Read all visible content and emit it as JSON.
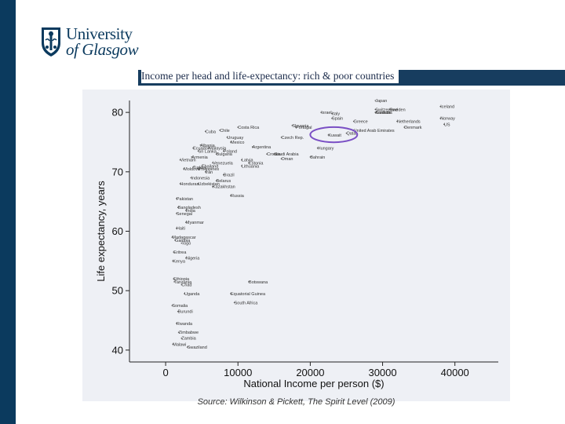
{
  "logo": {
    "line1": "University",
    "line2": "of Glasgow"
  },
  "slide": {
    "title": "Income per head and life-expectancy: rich & poor countries",
    "source": "Source: Wilkinson & Pickett, The Spirit Level (2009)"
  },
  "colors": {
    "brand": "#0b3a5e",
    "title_bar": "#173d5f",
    "chart_background": "#eef0f5",
    "highlight": "#7a4fc4"
  },
  "chart_data": {
    "type": "scatter",
    "title": "",
    "xlabel": "National Income per person ($)",
    "ylabel": "Life expectancy, years",
    "xlim": [
      -5000,
      46000
    ],
    "ylim": [
      38,
      82
    ],
    "xticks": [
      0,
      10000,
      20000,
      30000,
      40000
    ],
    "yticks": [
      40,
      50,
      60,
      70,
      80
    ],
    "xtick_labels": [
      "0",
      "10000",
      "20000",
      "30000",
      "40000"
    ],
    "ytick_labels": [
      "40",
      "50",
      "60",
      "70",
      "80"
    ],
    "grid": false,
    "series": [
      {
        "name": "Countries",
        "points": [
          {
            "x": 29000,
            "y": 82.0,
            "label": "Japan"
          },
          {
            "x": 38000,
            "y": 81.0,
            "label": "Iceland"
          },
          {
            "x": 31000,
            "y": 80.5,
            "label": "Sweden"
          },
          {
            "x": 29000,
            "y": 80.5,
            "label": "Switzerland"
          },
          {
            "x": 29000,
            "y": 80.0,
            "label": "Canada"
          },
          {
            "x": 29000,
            "y": 80.0,
            "label": "Australia"
          },
          {
            "x": 21500,
            "y": 80.0,
            "label": "Israel"
          },
          {
            "x": 23000,
            "y": 79.8,
            "label": "Italy"
          },
          {
            "x": 38000,
            "y": 79.0,
            "label": "Norway"
          },
          {
            "x": 32000,
            "y": 78.5,
            "label": "Netherlands"
          },
          {
            "x": 38500,
            "y": 78.0,
            "label": "US"
          },
          {
            "x": 33000,
            "y": 77.5,
            "label": "Denmark"
          },
          {
            "x": 26000,
            "y": 78.5,
            "label": "Greece"
          },
          {
            "x": 18000,
            "y": 77.5,
            "label": "Portugal"
          },
          {
            "x": 17500,
            "y": 77.8,
            "label": "Slovenia"
          },
          {
            "x": 16000,
            "y": 75.8,
            "label": "Czech Rep."
          },
          {
            "x": 10000,
            "y": 77.5,
            "label": "Costa Rica"
          },
          {
            "x": 7500,
            "y": 77.0,
            "label": "Chile"
          },
          {
            "x": 5500,
            "y": 76.8,
            "label": "Cuba"
          },
          {
            "x": 8500,
            "y": 75.8,
            "label": "Uruguay"
          },
          {
            "x": 9000,
            "y": 75.0,
            "label": "Mexico"
          },
          {
            "x": 12000,
            "y": 74.2,
            "label": "Argentina"
          },
          {
            "x": 4800,
            "y": 74.5,
            "label": "Albania"
          },
          {
            "x": 8000,
            "y": 73.5,
            "label": "Poland"
          },
          {
            "x": 6000,
            "y": 74.0,
            "label": "Malaysia"
          },
          {
            "x": 14000,
            "y": 73.0,
            "label": "Croatia"
          },
          {
            "x": 3800,
            "y": 74.0,
            "label": "Ecuador"
          },
          {
            "x": 4500,
            "y": 73.5,
            "label": "Sri Lanka"
          },
          {
            "x": 7000,
            "y": 73.0,
            "label": "Bulgaria"
          },
          {
            "x": 3600,
            "y": 72.5,
            "label": "Armenia"
          },
          {
            "x": 6500,
            "y": 71.5,
            "label": "Venezuela"
          },
          {
            "x": 5000,
            "y": 71.0,
            "label": "Thailand"
          },
          {
            "x": 2000,
            "y": 72.0,
            "label": "Vietnam"
          },
          {
            "x": 10500,
            "y": 72.0,
            "label": "Latvia"
          },
          {
            "x": 11500,
            "y": 71.5,
            "label": "Estonia"
          },
          {
            "x": 10500,
            "y": 71.0,
            "label": "Lithuania"
          },
          {
            "x": 2500,
            "y": 70.5,
            "label": "Moldova"
          },
          {
            "x": 4500,
            "y": 70.5,
            "label": "Philippines"
          },
          {
            "x": 3800,
            "y": 70.8,
            "label": "Turkey"
          },
          {
            "x": 5500,
            "y": 70.0,
            "label": "Iran"
          },
          {
            "x": 3500,
            "y": 69.0,
            "label": "Indonesia"
          },
          {
            "x": 8000,
            "y": 69.5,
            "label": "Brazil"
          },
          {
            "x": 7000,
            "y": 68.5,
            "label": "Belarus"
          },
          {
            "x": 2000,
            "y": 68.0,
            "label": "Honduras"
          },
          {
            "x": 4500,
            "y": 68.0,
            "label": "Uzbekistan"
          },
          {
            "x": 6500,
            "y": 67.5,
            "label": "Kazakhstan"
          },
          {
            "x": 9000,
            "y": 66.0,
            "label": "Russia"
          },
          {
            "x": 1500,
            "y": 65.5,
            "label": "Pakistan"
          },
          {
            "x": 1700,
            "y": 64.0,
            "label": "Bangladesh"
          },
          {
            "x": 2800,
            "y": 63.5,
            "label": "India"
          },
          {
            "x": 1500,
            "y": 63.0,
            "label": "Senegal"
          },
          {
            "x": 2800,
            "y": 61.5,
            "label": "Myanmar"
          },
          {
            "x": 1500,
            "y": 60.5,
            "label": "Haiti"
          },
          {
            "x": 900,
            "y": 59.0,
            "label": "Madagascar"
          },
          {
            "x": 1300,
            "y": 58.5,
            "label": "Gambia"
          },
          {
            "x": 2200,
            "y": 58.0,
            "label": "Togo"
          },
          {
            "x": 1100,
            "y": 56.5,
            "label": "Eritrea"
          },
          {
            "x": 2800,
            "y": 55.5,
            "label": "Nigeria"
          },
          {
            "x": 1000,
            "y": 55.0,
            "label": "Kenya"
          },
          {
            "x": 1100,
            "y": 52.0,
            "label": "Ethiopia"
          },
          {
            "x": 1200,
            "y": 51.5,
            "label": "Tanzania"
          },
          {
            "x": 2200,
            "y": 51.0,
            "label": "Chad"
          },
          {
            "x": 2600,
            "y": 49.5,
            "label": "Uganda"
          },
          {
            "x": 900,
            "y": 47.5,
            "label": "Somalia"
          },
          {
            "x": 1700,
            "y": 46.5,
            "label": "Burundi"
          },
          {
            "x": 1500,
            "y": 44.5,
            "label": "Rwanda"
          },
          {
            "x": 1800,
            "y": 43.0,
            "label": "Zimbabwe"
          },
          {
            "x": 2200,
            "y": 42.0,
            "label": "Zambia"
          },
          {
            "x": 1000,
            "y": 41.0,
            "label": "Malawi"
          },
          {
            "x": 3000,
            "y": 40.5,
            "label": "Swaziland"
          },
          {
            "x": 9500,
            "y": 48.0,
            "label": "South Africa"
          },
          {
            "x": 11500,
            "y": 51.5,
            "label": "Botswana"
          },
          {
            "x": 9000,
            "y": 49.5,
            "label": "Equatorial Guinea"
          },
          {
            "x": 23000,
            "y": 79.0,
            "label": "Spain"
          },
          {
            "x": 22500,
            "y": 76.2,
            "label": "Kuwait"
          },
          {
            "x": 21000,
            "y": 74.0,
            "label": "Hungary"
          },
          {
            "x": 20000,
            "y": 72.5,
            "label": "Bahrain"
          },
          {
            "x": 15000,
            "y": 73.0,
            "label": "Saudi Arabia"
          },
          {
            "x": 16000,
            "y": 72.2,
            "label": "Oman"
          },
          {
            "x": 25000,
            "y": 76.5,
            "label": "Qatar"
          },
          {
            "x": 26000,
            "y": 77.0,
            "label": "United Arab Emirates"
          }
        ]
      }
    ],
    "annotations": [
      {
        "type": "ellipse",
        "label": "highlighted rich countries",
        "x_range": [
          20000,
          26500
        ],
        "y_range": [
          75.5,
          77.0
        ]
      }
    ]
  }
}
